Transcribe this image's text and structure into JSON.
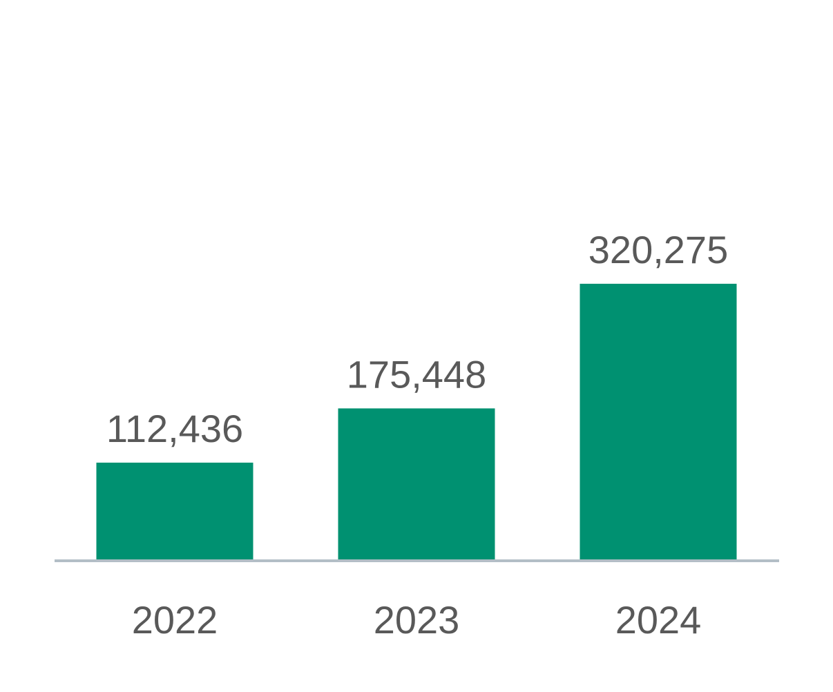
{
  "colors": {
    "bar": "#009171",
    "axis": "#b3bec6",
    "text": "#595959"
  },
  "chart_data": {
    "type": "bar",
    "categories": [
      "2022",
      "2023",
      "2024"
    ],
    "values": [
      112436,
      175448,
      320275
    ],
    "value_labels": [
      "112,436",
      "175,448",
      "320,275"
    ],
    "title": "",
    "xlabel": "",
    "ylabel": "",
    "ylim": [
      0,
      650000
    ],
    "grid": false,
    "legend": "none"
  }
}
